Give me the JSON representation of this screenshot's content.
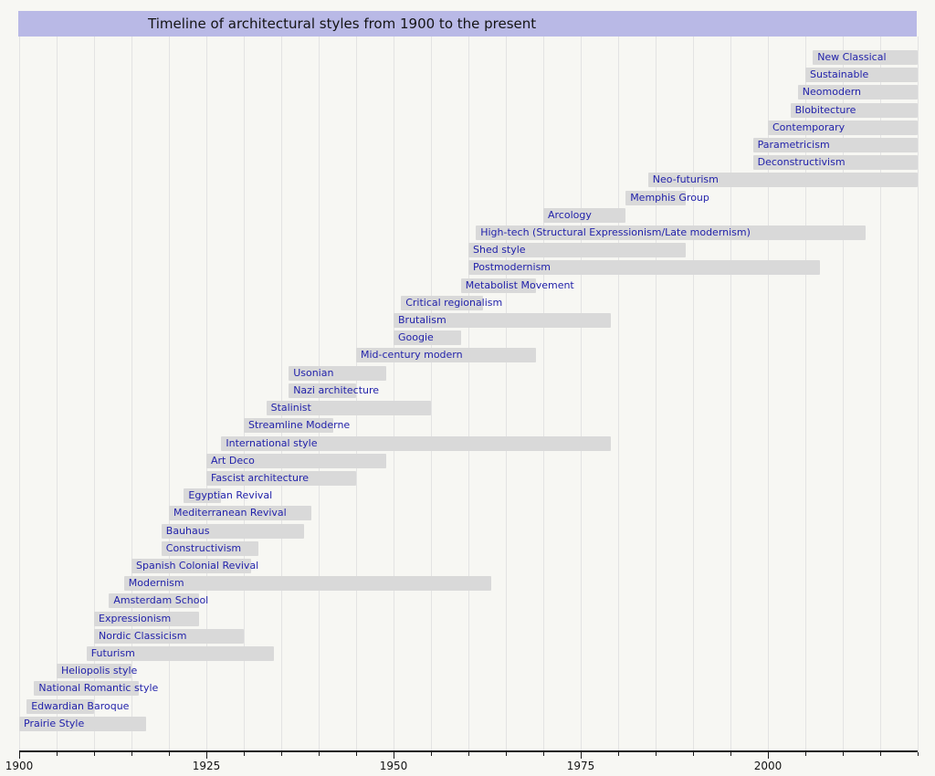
{
  "title": "Timeline of architectural styles from 1900 to the present",
  "colors": {
    "page_background": "#f7f7f3",
    "title_background": "#b9b9e6",
    "bar_fill": "#d9d9d9",
    "bar_label_text": "#2222aa",
    "gridline": "#e3e3e3",
    "axis": "#1a1a1a"
  },
  "chart_data": {
    "type": "bar",
    "variant": "horizontal-gantt-timeline",
    "title": "Timeline of architectural styles from 1900 to the present",
    "xlabel": "",
    "ylabel": "",
    "axis_range": [
      1900,
      2020
    ],
    "x_ticks_major": [
      1900,
      1925,
      1950,
      1975,
      2000
    ],
    "x_tick_labels": [
      "1900",
      "1925",
      "1950",
      "1975",
      "2000"
    ],
    "grid_step_years": 5,
    "grid": true,
    "legend_position": "none",
    "styles": [
      {
        "label": "New Classical",
        "start": 2006,
        "end": 2020
      },
      {
        "label": "Sustainable",
        "start": 2005,
        "end": 2020
      },
      {
        "label": "Neomodern",
        "start": 2004,
        "end": 2020
      },
      {
        "label": "Blobitecture",
        "start": 2003,
        "end": 2020
      },
      {
        "label": "Contemporary",
        "start": 2000,
        "end": 2020
      },
      {
        "label": "Parametricism",
        "start": 1998,
        "end": 2020
      },
      {
        "label": "Deconstructivism",
        "start": 1998,
        "end": 2020
      },
      {
        "label": "Neo-futurism",
        "start": 1984,
        "end": 2020
      },
      {
        "label": "Memphis Group",
        "start": 1981,
        "end": 1989
      },
      {
        "label": "Arcology",
        "start": 1970,
        "end": 1981
      },
      {
        "label": "High-tech (Structural Expressionism/Late modernism)",
        "start": 1961,
        "end": 2013
      },
      {
        "label": "Shed style",
        "start": 1960,
        "end": 1989
      },
      {
        "label": "Postmodernism",
        "start": 1960,
        "end": 2007
      },
      {
        "label": "Metabolist Movement",
        "start": 1959,
        "end": 1969
      },
      {
        "label": "Critical regionalism",
        "start": 1951,
        "end": 1962
      },
      {
        "label": "Brutalism",
        "start": 1950,
        "end": 1979
      },
      {
        "label": "Googie",
        "start": 1950,
        "end": 1959
      },
      {
        "label": "Mid-century modern",
        "start": 1945,
        "end": 1969
      },
      {
        "label": "Usonian",
        "start": 1936,
        "end": 1949
      },
      {
        "label": "Nazi architecture",
        "start": 1936,
        "end": 1945
      },
      {
        "label": "Stalinist",
        "start": 1933,
        "end": 1955
      },
      {
        "label": "Streamline Moderne",
        "start": 1930,
        "end": 1942
      },
      {
        "label": "International style",
        "start": 1927,
        "end": 1979
      },
      {
        "label": "Art Deco",
        "start": 1925,
        "end": 1949
      },
      {
        "label": "Fascist architecture",
        "start": 1925,
        "end": 1945
      },
      {
        "label": "Egyptian Revival",
        "start": 1922,
        "end": 1927
      },
      {
        "label": "Mediterranean Revival",
        "start": 1920,
        "end": 1939
      },
      {
        "label": "Bauhaus",
        "start": 1919,
        "end": 1938
      },
      {
        "label": "Constructivism",
        "start": 1919,
        "end": 1932
      },
      {
        "label": "Spanish Colonial Revival",
        "start": 1915,
        "end": 1931
      },
      {
        "label": "Modernism",
        "start": 1914,
        "end": 1963
      },
      {
        "label": "Amsterdam School",
        "start": 1912,
        "end": 1924
      },
      {
        "label": "Expressionism",
        "start": 1910,
        "end": 1924
      },
      {
        "label": "Nordic Classicism",
        "start": 1910,
        "end": 1930
      },
      {
        "label": "Futurism",
        "start": 1909,
        "end": 1934
      },
      {
        "label": "Heliopolis style",
        "start": 1905,
        "end": 1915
      },
      {
        "label": "National Romantic style",
        "start": 1902,
        "end": 1916
      },
      {
        "label": "Edwardian Baroque",
        "start": 1901,
        "end": 1910
      },
      {
        "label": "Prairie Style",
        "start": 1900,
        "end": 1917
      }
    ]
  }
}
